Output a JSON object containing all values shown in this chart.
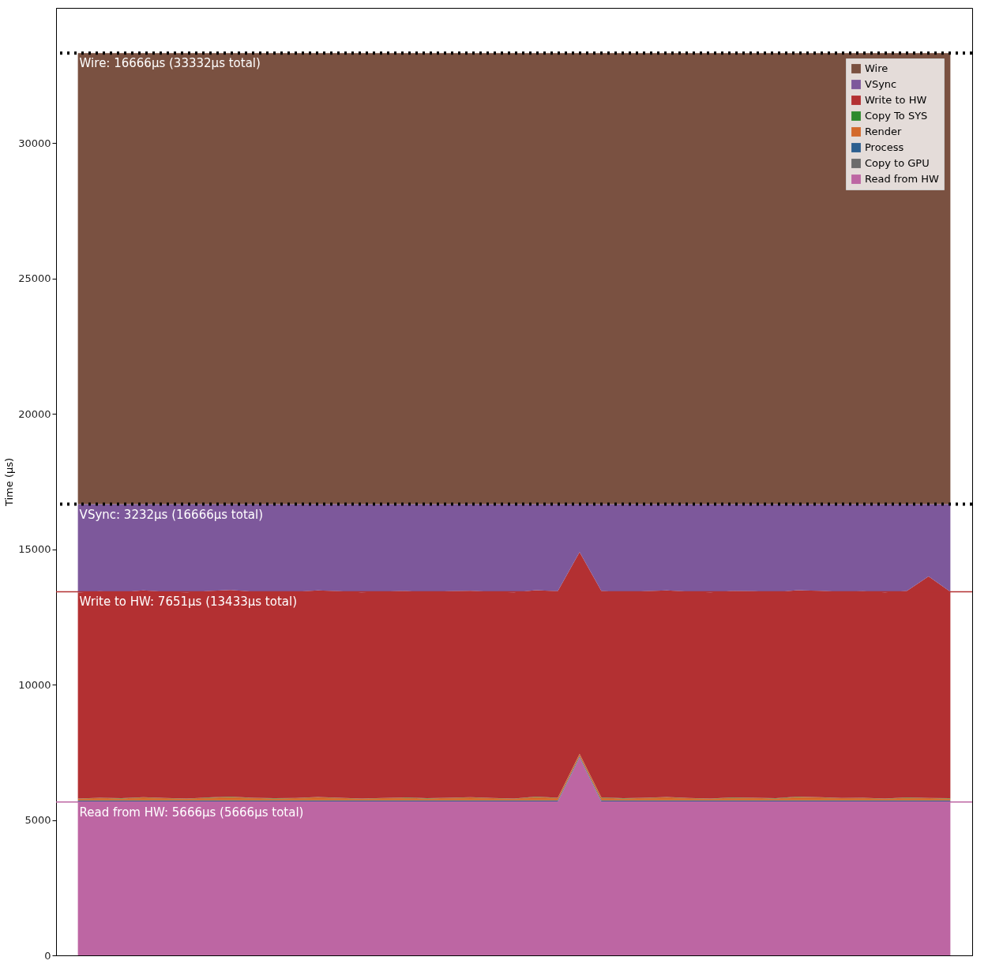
{
  "chart_data": {
    "type": "area",
    "stacked": true,
    "ylabel": "Time (µs)",
    "categories": [
      null,
      null,
      null,
      null,
      null,
      null,
      null,
      null,
      null,
      null,
      null,
      null,
      null,
      null,
      null,
      null,
      null,
      null,
      null,
      null,
      null,
      null,
      null,
      null,
      null,
      null,
      null,
      null,
      null,
      null,
      null,
      null,
      null,
      null,
      null,
      null,
      null,
      null,
      null,
      null,
      null
    ],
    "ylim": [
      0,
      35000
    ],
    "yticks": [
      0,
      5000,
      10000,
      15000,
      20000,
      25000,
      30000
    ],
    "tick_labels": "y",
    "grid": false,
    "legend": "top right",
    "series": [
      {
        "name": "Read from HW",
        "color": "#bd66a3",
        "values": [
          5666,
          5666,
          5666,
          5666,
          5666,
          5666,
          5666,
          5666,
          5666,
          5666,
          5666,
          5666,
          5666,
          5666,
          5666,
          5666,
          5666,
          5666,
          5666,
          5666,
          5666,
          5666,
          5666,
          7300,
          5666,
          5666,
          5666,
          5666,
          5666,
          5666,
          5666,
          5666,
          5666,
          5666,
          5666,
          5666,
          5666,
          5666,
          5666,
          5666,
          5666
        ]
      },
      {
        "name": "Copy to GPU",
        "color": "#6b6b6b",
        "values": [
          15,
          15,
          15,
          15,
          15,
          15,
          15,
          15,
          15,
          15,
          15,
          15,
          15,
          15,
          15,
          15,
          15,
          15,
          15,
          15,
          15,
          15,
          15,
          15,
          15,
          15,
          15,
          15,
          15,
          15,
          15,
          15,
          15,
          15,
          15,
          15,
          15,
          15,
          15,
          15,
          15
        ]
      },
      {
        "name": "Process",
        "color": "#2c5f8f",
        "values": [
          40,
          40,
          40,
          40,
          40,
          40,
          40,
          40,
          40,
          40,
          40,
          40,
          40,
          40,
          40,
          40,
          40,
          40,
          40,
          40,
          40,
          40,
          40,
          40,
          40,
          40,
          40,
          40,
          40,
          40,
          40,
          40,
          40,
          40,
          40,
          40,
          40,
          40,
          40,
          40,
          40
        ]
      },
      {
        "name": "Render",
        "color": "#d3692b",
        "values": [
          60,
          90,
          70,
          110,
          80,
          60,
          100,
          130,
          90,
          70,
          80,
          120,
          90,
          60,
          80,
          100,
          70,
          90,
          110,
          80,
          60,
          130,
          90,
          80,
          100,
          70,
          90,
          120,
          80,
          60,
          100,
          90,
          70,
          130,
          110,
          80,
          90,
          60,
          100,
          80,
          70
        ]
      },
      {
        "name": "Copy To SYS",
        "color": "#2d8a2d",
        "values": [
          10,
          10,
          10,
          10,
          10,
          10,
          10,
          10,
          10,
          10,
          10,
          10,
          10,
          10,
          10,
          10,
          10,
          10,
          10,
          10,
          10,
          10,
          10,
          10,
          10,
          10,
          10,
          10,
          10,
          10,
          10,
          10,
          10,
          10,
          10,
          10,
          10,
          10,
          10,
          10,
          10
        ]
      },
      {
        "name": "Write to HW",
        "color": "#b33032",
        "values": [
          7609,
          7629,
          7619,
          7639,
          7619,
          7619,
          7629,
          7639,
          7619,
          7619,
          7619,
          7629,
          7629,
          7619,
          7629,
          7629,
          7619,
          7629,
          7629,
          7619,
          7619,
          7629,
          7629,
          7455,
          7629,
          7619,
          7629,
          7629,
          7629,
          7619,
          7629,
          7629,
          7619,
          7629,
          7629,
          7619,
          7629,
          7619,
          7629,
          8189,
          7629
        ]
      },
      {
        "name": "VSync",
        "color": "#7d589b",
        "values": [
          3266,
          3216,
          3246,
          3186,
          3236,
          3256,
          3206,
          3166,
          3226,
          3246,
          3236,
          3186,
          3216,
          3256,
          3226,
          3206,
          3246,
          3216,
          3196,
          3236,
          3256,
          3176,
          3216,
          1766,
          3206,
          3246,
          3216,
          3186,
          3226,
          3256,
          3206,
          3216,
          3246,
          3176,
          3196,
          3236,
          3216,
          3256,
          3206,
          2666,
          3236
        ]
      },
      {
        "name": "Wire",
        "color": "#7a5141",
        "values": [
          16666,
          16666,
          16666,
          16666,
          16666,
          16666,
          16666,
          16666,
          16666,
          16666,
          16666,
          16666,
          16666,
          16666,
          16666,
          16666,
          16666,
          16666,
          16666,
          16666,
          16666,
          16666,
          16666,
          16666,
          16666,
          16666,
          16666,
          16666,
          16666,
          16666,
          16666,
          16666,
          16666,
          16666,
          16666,
          16666,
          16666,
          16666,
          16666,
          16666,
          16666
        ]
      }
    ],
    "ref_lines": [
      {
        "axis": "y",
        "value": 33332,
        "label": "Wire: 16666µs (33332µs total)",
        "color": "#000000",
        "line_style": "dotted"
      },
      {
        "axis": "y",
        "value": 16666,
        "label": "VSync: 3232µs (16666µs total)",
        "color": "#000000",
        "line_style": "dotted"
      },
      {
        "axis": "y",
        "value": 13433,
        "label": "Write to HW: 7651µs (13433µs total)",
        "color": "#b33032",
        "line_style": "solid"
      },
      {
        "axis": "y",
        "value": 5666,
        "label": "Read from HW: 5666µs (5666µs total)",
        "color": "#bd66a3",
        "line_style": "solid"
      }
    ]
  }
}
